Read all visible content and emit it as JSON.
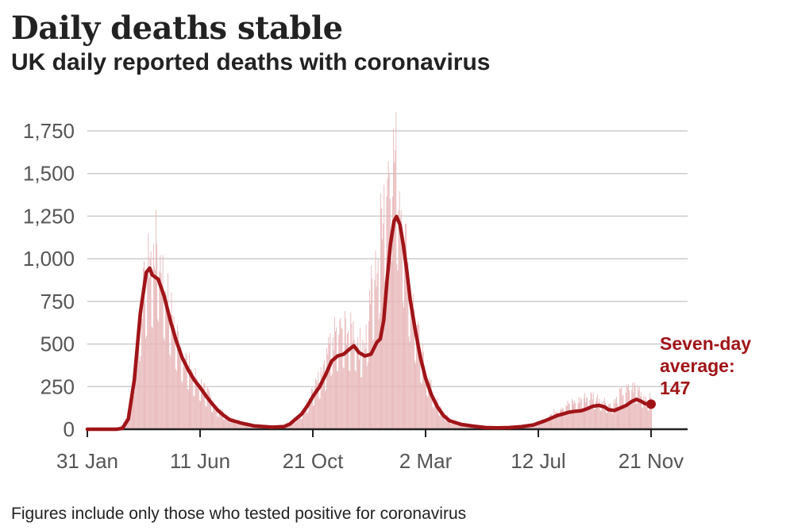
{
  "title": "Daily deaths stable",
  "subtitle": "UK daily reported deaths with coronavirus",
  "footnote": "Figures include only those who tested positive for coronavirus",
  "colors": {
    "line": "#a01418",
    "bars": "#e8b7b9",
    "grid": "#cccccc",
    "axis": "#222222",
    "tick_text": "#555555"
  },
  "chart_data": {
    "type": "line",
    "title": "Daily deaths stable",
    "subtitle": "UK daily reported deaths with coronavirus",
    "xlabel": "",
    "ylabel": "",
    "x_ticks": [
      "2020-01-31",
      "2020-06-11",
      "2020-10-21",
      "2021-03-02",
      "2021-07-12",
      "2021-11-21"
    ],
    "x_tick_labels": [
      "31 Jan",
      "11 Jun",
      "21 Oct",
      "2 Mar",
      "12 Jul",
      "21 Nov"
    ],
    "xlim": [
      "2020-01-31",
      "2021-11-21"
    ],
    "y_ticks": [
      0,
      250,
      500,
      750,
      1000,
      1250,
      1500,
      1750
    ],
    "y_tick_labels": [
      "0",
      "250",
      "500",
      "750",
      "1,000",
      "1,250",
      "1,500",
      "1,750"
    ],
    "ylim": [
      0,
      1750
    ],
    "grid": "horizontal",
    "series": [
      {
        "name": "Seven-day average",
        "kind": "line",
        "points": [
          [
            "2020-01-31",
            0
          ],
          [
            "2020-03-05",
            0
          ],
          [
            "2020-03-12",
            5
          ],
          [
            "2020-03-19",
            60
          ],
          [
            "2020-03-26",
            290
          ],
          [
            "2020-04-02",
            680
          ],
          [
            "2020-04-09",
            920
          ],
          [
            "2020-04-13",
            945
          ],
          [
            "2020-04-16",
            905
          ],
          [
            "2020-04-23",
            880
          ],
          [
            "2020-04-30",
            780
          ],
          [
            "2020-05-07",
            640
          ],
          [
            "2020-05-14",
            520
          ],
          [
            "2020-05-21",
            420
          ],
          [
            "2020-05-28",
            350
          ],
          [
            "2020-06-04",
            290
          ],
          [
            "2020-06-11",
            245
          ],
          [
            "2020-06-18",
            195
          ],
          [
            "2020-06-25",
            150
          ],
          [
            "2020-07-02",
            110
          ],
          [
            "2020-07-09",
            80
          ],
          [
            "2020-07-16",
            55
          ],
          [
            "2020-07-30",
            35
          ],
          [
            "2020-08-13",
            20
          ],
          [
            "2020-09-03",
            12
          ],
          [
            "2020-09-17",
            15
          ],
          [
            "2020-09-24",
            30
          ],
          [
            "2020-10-01",
            60
          ],
          [
            "2020-10-08",
            90
          ],
          [
            "2020-10-15",
            140
          ],
          [
            "2020-10-22",
            200
          ],
          [
            "2020-10-29",
            250
          ],
          [
            "2020-11-05",
            320
          ],
          [
            "2020-11-12",
            400
          ],
          [
            "2020-11-19",
            430
          ],
          [
            "2020-11-26",
            440
          ],
          [
            "2020-12-03",
            470
          ],
          [
            "2020-12-08",
            490
          ],
          [
            "2020-12-14",
            450
          ],
          [
            "2020-12-21",
            430
          ],
          [
            "2020-12-28",
            440
          ],
          [
            "2021-01-04",
            510
          ],
          [
            "2021-01-08",
            530
          ],
          [
            "2021-01-12",
            640
          ],
          [
            "2021-01-16",
            880
          ],
          [
            "2021-01-20",
            1090
          ],
          [
            "2021-01-24",
            1220
          ],
          [
            "2021-01-27",
            1248
          ],
          [
            "2021-01-31",
            1200
          ],
          [
            "2021-02-04",
            1080
          ],
          [
            "2021-02-08",
            930
          ],
          [
            "2021-02-12",
            760
          ],
          [
            "2021-02-18",
            580
          ],
          [
            "2021-02-24",
            420
          ],
          [
            "2021-03-02",
            300
          ],
          [
            "2021-03-09",
            200
          ],
          [
            "2021-03-16",
            130
          ],
          [
            "2021-03-23",
            80
          ],
          [
            "2021-03-30",
            50
          ],
          [
            "2021-04-13",
            28
          ],
          [
            "2021-04-27",
            18
          ],
          [
            "2021-05-11",
            10
          ],
          [
            "2021-05-25",
            8
          ],
          [
            "2021-06-08",
            10
          ],
          [
            "2021-06-22",
            15
          ],
          [
            "2021-07-06",
            25
          ],
          [
            "2021-07-20",
            50
          ],
          [
            "2021-07-27",
            65
          ],
          [
            "2021-08-03",
            80
          ],
          [
            "2021-08-10",
            90
          ],
          [
            "2021-08-17",
            100
          ],
          [
            "2021-08-24",
            105
          ],
          [
            "2021-08-31",
            108
          ],
          [
            "2021-09-07",
            120
          ],
          [
            "2021-09-14",
            135
          ],
          [
            "2021-09-21",
            140
          ],
          [
            "2021-09-28",
            130
          ],
          [
            "2021-10-02",
            115
          ],
          [
            "2021-10-09",
            110
          ],
          [
            "2021-10-16",
            125
          ],
          [
            "2021-10-23",
            140
          ],
          [
            "2021-10-30",
            165
          ],
          [
            "2021-11-04",
            175
          ],
          [
            "2021-11-09",
            165
          ],
          [
            "2021-11-14",
            150
          ],
          [
            "2021-11-21",
            147
          ]
        ]
      },
      {
        "name": "Daily reported deaths",
        "kind": "bars",
        "points": [
          [
            "2020-03-05",
            0
          ],
          [
            "2020-03-19",
            80
          ],
          [
            "2020-03-26",
            400
          ],
          [
            "2020-04-02",
            780
          ],
          [
            "2020-04-09",
            1000
          ],
          [
            "2020-04-13",
            1120
          ],
          [
            "2020-04-16",
            1080
          ],
          [
            "2020-04-21",
            1200
          ],
          [
            "2020-04-28",
            1000
          ],
          [
            "2020-05-07",
            780
          ],
          [
            "2020-05-14",
            620
          ],
          [
            "2020-05-21",
            500
          ],
          [
            "2020-05-28",
            420
          ],
          [
            "2020-06-04",
            350
          ],
          [
            "2020-06-11",
            300
          ],
          [
            "2020-06-18",
            240
          ],
          [
            "2020-06-25",
            180
          ],
          [
            "2020-07-02",
            130
          ],
          [
            "2020-07-09",
            100
          ],
          [
            "2020-07-16",
            70
          ],
          [
            "2020-07-30",
            45
          ],
          [
            "2020-08-13",
            30
          ],
          [
            "2020-09-03",
            20
          ],
          [
            "2020-09-24",
            40
          ],
          [
            "2020-10-01",
            75
          ],
          [
            "2020-10-08",
            110
          ],
          [
            "2020-10-15",
            180
          ],
          [
            "2020-10-22",
            260
          ],
          [
            "2020-10-29",
            330
          ],
          [
            "2020-11-05",
            420
          ],
          [
            "2020-11-12",
            590
          ],
          [
            "2020-11-19",
            620
          ],
          [
            "2020-11-26",
            660
          ],
          [
            "2020-12-03",
            620
          ],
          [
            "2020-12-08",
            650
          ],
          [
            "2020-12-14",
            540
          ],
          [
            "2020-12-21",
            580
          ],
          [
            "2020-12-28",
            900
          ],
          [
            "2021-01-04",
            1050
          ],
          [
            "2021-01-08",
            1300
          ],
          [
            "2021-01-12",
            1560
          ],
          [
            "2021-01-16",
            1650
          ],
          [
            "2021-01-20",
            1820
          ],
          [
            "2021-01-24",
            1720
          ],
          [
            "2021-01-27",
            1760
          ],
          [
            "2021-01-31",
            1500
          ],
          [
            "2021-02-04",
            1300
          ],
          [
            "2021-02-08",
            1100
          ],
          [
            "2021-02-12",
            880
          ],
          [
            "2021-02-18",
            700
          ],
          [
            "2021-02-24",
            500
          ],
          [
            "2021-03-02",
            380
          ],
          [
            "2021-03-09",
            250
          ],
          [
            "2021-03-16",
            160
          ],
          [
            "2021-03-23",
            100
          ],
          [
            "2021-03-30",
            60
          ],
          [
            "2021-04-13",
            35
          ],
          [
            "2021-04-27",
            25
          ],
          [
            "2021-05-11",
            15
          ],
          [
            "2021-05-25",
            12
          ],
          [
            "2021-06-08",
            15
          ],
          [
            "2021-06-22",
            22
          ],
          [
            "2021-07-06",
            35
          ],
          [
            "2021-07-20",
            70
          ],
          [
            "2021-07-27",
            95
          ],
          [
            "2021-08-03",
            130
          ],
          [
            "2021-08-10",
            150
          ],
          [
            "2021-08-17",
            165
          ],
          [
            "2021-08-24",
            170
          ],
          [
            "2021-08-31",
            195
          ],
          [
            "2021-09-07",
            205
          ],
          [
            "2021-09-14",
            215
          ],
          [
            "2021-09-21",
            200
          ],
          [
            "2021-09-28",
            180
          ],
          [
            "2021-10-02",
            160
          ],
          [
            "2021-10-09",
            170
          ],
          [
            "2021-10-16",
            230
          ],
          [
            "2021-10-23",
            245
          ],
          [
            "2021-10-30",
            265
          ],
          [
            "2021-11-04",
            275
          ],
          [
            "2021-11-09",
            240
          ],
          [
            "2021-11-14",
            210
          ],
          [
            "2021-11-21",
            190
          ]
        ]
      }
    ],
    "annotation": {
      "label_lines": [
        "Seven-day",
        "average:",
        "147"
      ],
      "x": "2021-11-21",
      "y": 147
    }
  }
}
